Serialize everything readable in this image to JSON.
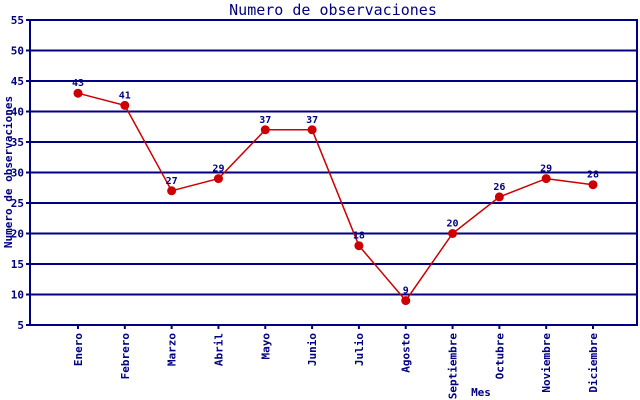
{
  "chart_data": {
    "type": "line",
    "title": "Numero de observaciones",
    "xlabel": "Mes",
    "ylabel": "Numero de observaciones",
    "categories": [
      "Enero",
      "Febrero",
      "Marzo",
      "Abril",
      "Mayo",
      "Junio",
      "Julio",
      "Agosto",
      "Septiembre",
      "Octubre",
      "Noviembre",
      "Diciembre"
    ],
    "values": [
      43,
      41,
      27,
      29,
      37,
      37,
      18,
      9,
      20,
      26,
      29,
      28
    ],
    "ylim": [
      5,
      55
    ],
    "ytick_step": 5,
    "yticks": [
      5,
      10,
      15,
      20,
      25,
      30,
      35,
      40,
      45,
      50,
      55
    ],
    "grid": "horizontal",
    "legend": "none",
    "colors": {
      "line": "#cc0000",
      "marker": "#cc0000",
      "axis": "#000080",
      "grid": "#000080",
      "text": "#000080",
      "background": "#ffffff"
    }
  }
}
